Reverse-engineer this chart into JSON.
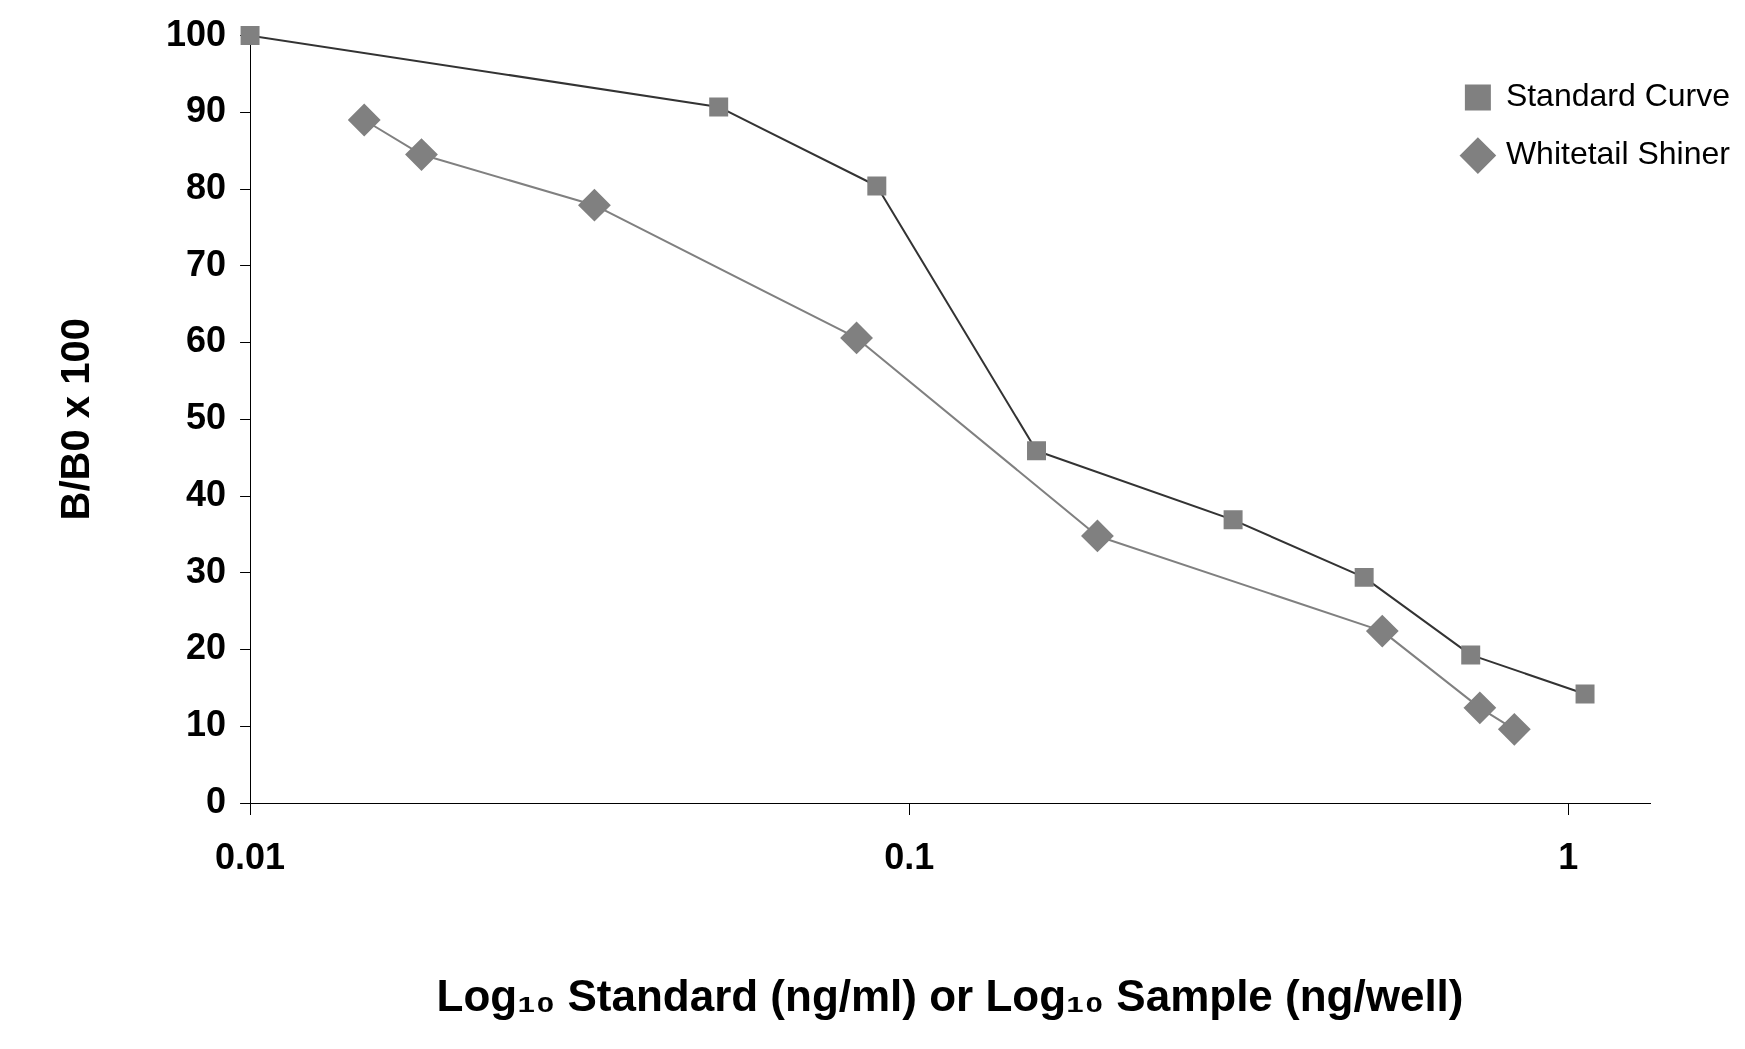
{
  "chart_data": {
    "type": "line",
    "xlabel": "Log₁₀ Standard (ng/ml) or Log₁₀ Sample (ng/well)",
    "ylabel": "B/B0 x 100",
    "log": "x",
    "xlim": [
      0.01,
      1.33
    ],
    "xticks": [
      0.01,
      0.1,
      1
    ],
    "ylim": [
      0,
      100
    ],
    "yticks": [
      0,
      10,
      20,
      30,
      40,
      50,
      60,
      70,
      80,
      90,
      100
    ],
    "grid": false,
    "legend": "top right",
    "line_style": "solid",
    "series": [
      {
        "name": "Standard Curve",
        "color": "#333333",
        "marker": "square",
        "x": [
          0.01,
          0.0514,
          0.0893,
          0.156,
          0.31,
          0.49,
          0.711,
          1.06
        ],
        "values": [
          100,
          90.7,
          80.4,
          45.9,
          36.9,
          29.4,
          19.3,
          14.2
        ]
      },
      {
        "name": "Whitetail Shiner",
        "color": "#808080",
        "marker": "diamond",
        "x": [
          0.0149,
          0.0182,
          0.0333,
          0.0832,
          0.193,
          0.522,
          0.734,
          0.828
        ],
        "values": [
          89,
          84.5,
          77.9,
          60.6,
          34.8,
          22.4,
          12.4,
          9.6
        ]
      }
    ]
  }
}
